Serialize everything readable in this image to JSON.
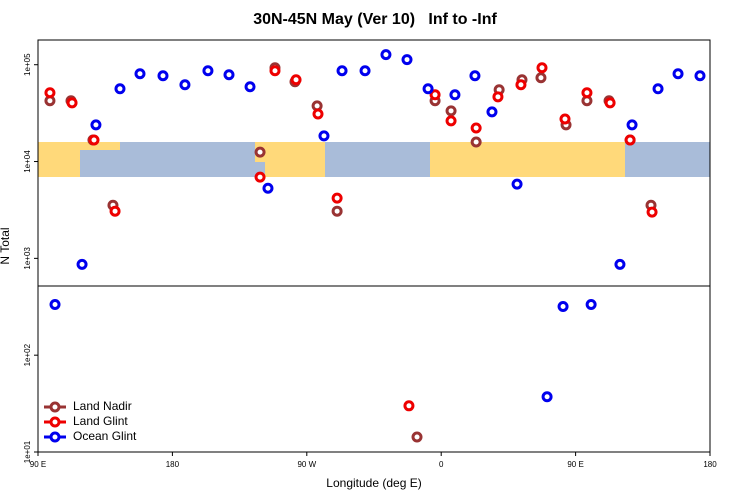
{
  "chart_data": {
    "type": "scatter",
    "title": "30N-45N May (Ver 10)   Inf to -Inf",
    "x_label": "Longitude (deg E)",
    "y_label": "N Total",
    "log_y": true,
    "legend": "bottomleft",
    "xlim": [
      90,
      540
    ],
    "ylim": [
      10,
      180000
    ],
    "xticks": [
      {
        "value": 90,
        "label": "90 E"
      },
      {
        "value": 180,
        "label": "180"
      },
      {
        "value": 270,
        "label": "90 W"
      },
      {
        "value": 360,
        "label": "0"
      },
      {
        "value": 450,
        "label": "90 E"
      },
      {
        "value": 540,
        "label": "180"
      }
    ],
    "yticks": [
      {
        "value": 10,
        "label": "1e+01"
      },
      {
        "value": 100,
        "label": "1e+02"
      },
      {
        "value": 1000,
        "label": "1e+03"
      },
      {
        "value": 10000,
        "label": "1e+04"
      },
      {
        "value": 100000,
        "label": "1e+05"
      }
    ],
    "series": [
      {
        "name": "Land Nadir",
        "color": "#993333",
        "x": [
          98.0,
          112.1,
          126.8,
          140.2,
          238.7,
          248.7,
          262.1,
          276.9,
          290.3,
          355.9,
          366.6,
          383.4,
          398.8,
          414.1,
          426.8,
          443.6,
          457.6,
          472.4,
          486.5,
          500.5,
          343.8
        ],
        "values": [
          42400,
          42400,
          16700,
          3540,
          12500,
          93100,
          66700,
          37600,
          3070,
          42400,
          33400,
          15900,
          55100,
          69900,
          73300,
          23900,
          42400,
          42400,
          16700,
          3540,
          14.3
        ]
      },
      {
        "name": "Land Glint",
        "color": "#ee0000",
        "x": [
          98.0,
          112.8,
          127.5,
          141.6,
          238.7,
          248.7,
          262.8,
          277.5,
          290.3,
          338.4,
          355.9,
          366.6,
          383.4,
          398.0,
          413.4,
          427.5,
          442.9,
          457.6,
          473.1,
          486.5,
          501.2
        ],
        "values": [
          51300,
          40400,
          16700,
          3070,
          6900,
          86700,
          69900,
          31000,
          4190,
          30.0,
          48900,
          26300,
          22200,
          46600,
          62100,
          93100,
          27500,
          51300,
          40400,
          16700,
          3000
        ]
      },
      {
        "name": "Ocean Glint",
        "color": "#0000ee",
        "x": [
          101.4,
          119.5,
          128.8,
          144.9,
          158.3,
          173.7,
          188.4,
          203.8,
          217.9,
          232.0,
          244.0,
          281.5,
          293.6,
          309.0,
          323.0,
          337.1,
          351.2,
          369.2,
          382.6,
          394.0,
          410.8,
          430.9,
          441.6,
          460.4,
          479.7,
          487.8,
          505.2,
          518.6,
          533.3
        ],
        "values": [
          334,
          867,
          23900,
          56400,
          80700,
          76900,
          62100,
          86700,
          78800,
          59200,
          5300,
          18400,
          86700,
          86700,
          127000,
          113000,
          56400,
          48900,
          76900,
          32600,
          5850,
          37.2,
          318,
          334,
          867,
          23900,
          56400,
          80700,
          76900
        ]
      }
    ]
  }
}
